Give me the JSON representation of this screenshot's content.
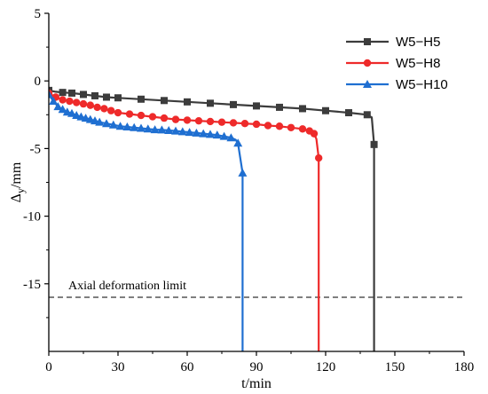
{
  "chart_data": {
    "type": "line",
    "xlabel": "t/min",
    "ylabel_main": "Δ",
    "ylabel_sub": "y",
    "ylabel_unit": "/mm",
    "xlim": [
      0,
      180
    ],
    "ylim": [
      -20,
      5
    ],
    "xticks": [
      0,
      30,
      60,
      90,
      120,
      150,
      180
    ],
    "yticks": [
      5,
      0,
      -5,
      -10,
      -15
    ],
    "legend_position": "top-right",
    "annotation": {
      "text": "Axial deformation limit",
      "y": -16
    },
    "series": [
      {
        "name": "W5−H5",
        "color": "#3c3c3c",
        "marker": "square",
        "points": [
          [
            0,
            -0.7
          ],
          [
            3,
            -0.8
          ],
          [
            6,
            -0.85
          ],
          [
            10,
            -0.9
          ],
          [
            15,
            -1.0
          ],
          [
            20,
            -1.1
          ],
          [
            25,
            -1.2
          ],
          [
            30,
            -1.25
          ],
          [
            40,
            -1.35
          ],
          [
            50,
            -1.45
          ],
          [
            60,
            -1.55
          ],
          [
            70,
            -1.65
          ],
          [
            80,
            -1.75
          ],
          [
            90,
            -1.85
          ],
          [
            100,
            -1.95
          ],
          [
            110,
            -2.05
          ],
          [
            120,
            -2.2
          ],
          [
            130,
            -2.35
          ],
          [
            138,
            -2.5
          ],
          [
            140,
            -2.7
          ],
          [
            141,
            -4.7
          ],
          [
            141,
            -20
          ]
        ],
        "marked": [
          0,
          2,
          3,
          4,
          5,
          6,
          7,
          8,
          9,
          10,
          11,
          12,
          13,
          14,
          15,
          16,
          17,
          18,
          20
        ]
      },
      {
        "name": "W5−H8",
        "color": "#ee2a2a",
        "marker": "circle",
        "points": [
          [
            0,
            -0.9
          ],
          [
            3,
            -1.2
          ],
          [
            6,
            -1.4
          ],
          [
            9,
            -1.5
          ],
          [
            12,
            -1.6
          ],
          [
            15,
            -1.7
          ],
          [
            18,
            -1.8
          ],
          [
            21,
            -1.95
          ],
          [
            24,
            -2.05
          ],
          [
            27,
            -2.2
          ],
          [
            30,
            -2.35
          ],
          [
            35,
            -2.45
          ],
          [
            40,
            -2.55
          ],
          [
            45,
            -2.65
          ],
          [
            50,
            -2.75
          ],
          [
            55,
            -2.85
          ],
          [
            60,
            -2.9
          ],
          [
            65,
            -2.95
          ],
          [
            70,
            -3.0
          ],
          [
            75,
            -3.05
          ],
          [
            80,
            -3.1
          ],
          [
            85,
            -3.15
          ],
          [
            90,
            -3.2
          ],
          [
            95,
            -3.3
          ],
          [
            100,
            -3.35
          ],
          [
            105,
            -3.45
          ],
          [
            110,
            -3.55
          ],
          [
            113,
            -3.7
          ],
          [
            115,
            -3.9
          ],
          [
            116,
            -4.3
          ],
          [
            117,
            -5.7
          ],
          [
            117,
            -20
          ]
        ],
        "marked": [
          0,
          1,
          2,
          3,
          4,
          5,
          6,
          7,
          8,
          9,
          10,
          11,
          12,
          13,
          14,
          15,
          16,
          17,
          18,
          19,
          20,
          21,
          22,
          23,
          24,
          25,
          26,
          27,
          28,
          30
        ]
      },
      {
        "name": "W5−H10",
        "color": "#1f6fd1",
        "marker": "triangle",
        "points": [
          [
            0,
            -1.0
          ],
          [
            2,
            -1.5
          ],
          [
            4,
            -1.9
          ],
          [
            6,
            -2.1
          ],
          [
            8,
            -2.3
          ],
          [
            10,
            -2.4
          ],
          [
            12,
            -2.55
          ],
          [
            14,
            -2.65
          ],
          [
            16,
            -2.75
          ],
          [
            18,
            -2.85
          ],
          [
            20,
            -2.95
          ],
          [
            22,
            -3.05
          ],
          [
            25,
            -3.15
          ],
          [
            28,
            -3.25
          ],
          [
            31,
            -3.35
          ],
          [
            34,
            -3.4
          ],
          [
            37,
            -3.45
          ],
          [
            40,
            -3.5
          ],
          [
            43,
            -3.55
          ],
          [
            46,
            -3.6
          ],
          [
            49,
            -3.62
          ],
          [
            52,
            -3.66
          ],
          [
            55,
            -3.7
          ],
          [
            58,
            -3.75
          ],
          [
            61,
            -3.8
          ],
          [
            64,
            -3.85
          ],
          [
            67,
            -3.9
          ],
          [
            70,
            -3.95
          ],
          [
            73,
            -4.0
          ],
          [
            76,
            -4.1
          ],
          [
            79,
            -4.2
          ],
          [
            81,
            -4.35
          ],
          [
            82,
            -4.6
          ],
          [
            84,
            -6.8
          ],
          [
            84,
            -20
          ]
        ],
        "marked": [
          0,
          1,
          2,
          3,
          4,
          5,
          6,
          7,
          8,
          9,
          10,
          11,
          12,
          13,
          14,
          15,
          16,
          17,
          18,
          19,
          20,
          21,
          22,
          23,
          24,
          25,
          26,
          27,
          28,
          29,
          30,
          32,
          33
        ]
      }
    ]
  }
}
